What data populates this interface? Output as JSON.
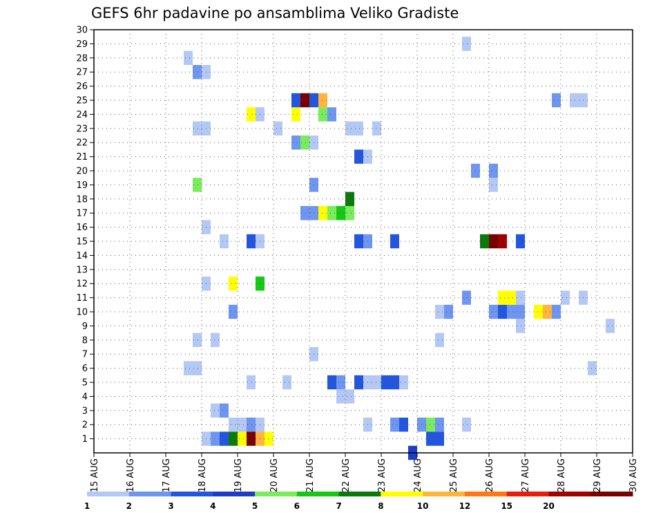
{
  "chart_data": {
    "type": "heatmap",
    "title": "GEFS 6hr padavine po ansamblima Veliko Gradiste",
    "xlabel": "",
    "ylabel": "",
    "x_ticks": [
      "15 AUG",
      "16 AUG",
      "17 AUG",
      "18 AUG",
      "19 AUG",
      "20 AUG",
      "21 AUG",
      "22 AUG",
      "23 AUG",
      "24 AUG",
      "25 AUG",
      "26 AUG",
      "27 AUG",
      "28 AUG",
      "29 AUG",
      "30 AUG"
    ],
    "y_ticks": [
      "1",
      "2",
      "3",
      "4",
      "5",
      "6",
      "7",
      "8",
      "9",
      "10",
      "11",
      "12",
      "13",
      "14",
      "15",
      "16",
      "17",
      "18",
      "19",
      "20",
      "21",
      "22",
      "23",
      "24",
      "25",
      "26",
      "27",
      "28",
      "29",
      "30"
    ],
    "x_unit": "days since 15 AUG",
    "xlim": [
      0,
      15
    ],
    "ylim": [
      0,
      30
    ],
    "grid": true,
    "colorbar": {
      "labels": [
        "1",
        "2",
        "3",
        "4",
        "5",
        "6",
        "7",
        "8",
        "10",
        "12",
        "15",
        "20"
      ],
      "colors": [
        "#b4c8f5",
        "#6e96f0",
        "#2356dc",
        "#1e3cc8",
        "#78ec5a",
        "#14c814",
        "#0a7a0a",
        "#ffff00",
        "#ffb43c",
        "#ff7814",
        "#e61e0a",
        "#a00000",
        "#780000"
      ]
    },
    "cells": [
      {
        "x": 8.75,
        "y": 0,
        "c": "#1e3cc8"
      },
      {
        "x": 3.0,
        "y": 1,
        "c": "#b4c8f5"
      },
      {
        "x": 3.25,
        "y": 1,
        "c": "#6e96f0"
      },
      {
        "x": 3.5,
        "y": 1,
        "c": "#2356dc"
      },
      {
        "x": 3.75,
        "y": 1,
        "c": "#0a7a0a"
      },
      {
        "x": 4.0,
        "y": 1,
        "c": "#ffff00"
      },
      {
        "x": 4.25,
        "y": 1,
        "c": "#780000"
      },
      {
        "x": 4.5,
        "y": 1,
        "c": "#ffb43c"
      },
      {
        "x": 4.75,
        "y": 1,
        "c": "#ffff00"
      },
      {
        "x": 9.25,
        "y": 1,
        "c": "#2356dc"
      },
      {
        "x": 9.5,
        "y": 1,
        "c": "#2356dc"
      },
      {
        "x": 3.75,
        "y": 2,
        "c": "#b4c8f5"
      },
      {
        "x": 4.0,
        "y": 2,
        "c": "#b4c8f5"
      },
      {
        "x": 4.25,
        "y": 2,
        "c": "#6e96f0"
      },
      {
        "x": 4.5,
        "y": 2,
        "c": "#b4c8f5"
      },
      {
        "x": 7.5,
        "y": 2,
        "c": "#b4c8f5"
      },
      {
        "x": 8.25,
        "y": 2,
        "c": "#6e96f0"
      },
      {
        "x": 8.5,
        "y": 2,
        "c": "#2356dc"
      },
      {
        "x": 9.0,
        "y": 2,
        "c": "#6e96f0"
      },
      {
        "x": 9.25,
        "y": 2,
        "c": "#78ec5a"
      },
      {
        "x": 9.5,
        "y": 2,
        "c": "#6e96f0"
      },
      {
        "x": 10.25,
        "y": 2,
        "c": "#b4c8f5"
      },
      {
        "x": 3.25,
        "y": 3,
        "c": "#b4c8f5"
      },
      {
        "x": 3.5,
        "y": 3,
        "c": "#6e96f0"
      },
      {
        "x": 6.75,
        "y": 4,
        "c": "#b4c8f5"
      },
      {
        "x": 7.0,
        "y": 4,
        "c": "#b4c8f5"
      },
      {
        "x": 4.25,
        "y": 5,
        "c": "#b4c8f5"
      },
      {
        "x": 5.25,
        "y": 5,
        "c": "#b4c8f5"
      },
      {
        "x": 6.5,
        "y": 5,
        "c": "#2356dc"
      },
      {
        "x": 6.75,
        "y": 5,
        "c": "#6e96f0"
      },
      {
        "x": 7.25,
        "y": 5,
        "c": "#2356dc"
      },
      {
        "x": 7.5,
        "y": 5,
        "c": "#b4c8f5"
      },
      {
        "x": 7.75,
        "y": 5,
        "c": "#b4c8f5"
      },
      {
        "x": 8.0,
        "y": 5,
        "c": "#2356dc"
      },
      {
        "x": 8.25,
        "y": 5,
        "c": "#2356dc"
      },
      {
        "x": 8.5,
        "y": 5,
        "c": "#b4c8f5"
      },
      {
        "x": 2.5,
        "y": 6,
        "c": "#b4c8f5"
      },
      {
        "x": 2.75,
        "y": 6,
        "c": "#b4c8f5"
      },
      {
        "x": 13.75,
        "y": 6,
        "c": "#b4c8f5"
      },
      {
        "x": 6.0,
        "y": 7,
        "c": "#b4c8f5"
      },
      {
        "x": 2.75,
        "y": 8,
        "c": "#b4c8f5"
      },
      {
        "x": 3.25,
        "y": 8,
        "c": "#b4c8f5"
      },
      {
        "x": 9.5,
        "y": 8,
        "c": "#b4c8f5"
      },
      {
        "x": 11.75,
        "y": 9,
        "c": "#b4c8f5"
      },
      {
        "x": 14.25,
        "y": 9,
        "c": "#b4c8f5"
      },
      {
        "x": 3.75,
        "y": 10,
        "c": "#6e96f0"
      },
      {
        "x": 9.5,
        "y": 10,
        "c": "#b4c8f5"
      },
      {
        "x": 9.75,
        "y": 10,
        "c": "#6e96f0"
      },
      {
        "x": 11.0,
        "y": 10,
        "c": "#6e96f0"
      },
      {
        "x": 11.25,
        "y": 10,
        "c": "#2356dc"
      },
      {
        "x": 11.5,
        "y": 10,
        "c": "#6e96f0"
      },
      {
        "x": 11.75,
        "y": 10,
        "c": "#6e96f0"
      },
      {
        "x": 12.25,
        "y": 10,
        "c": "#ffff00"
      },
      {
        "x": 12.5,
        "y": 10,
        "c": "#ffb43c"
      },
      {
        "x": 12.75,
        "y": 10,
        "c": "#6e96f0"
      },
      {
        "x": 10.25,
        "y": 11,
        "c": "#6e96f0"
      },
      {
        "x": 11.25,
        "y": 11,
        "c": "#ffff00"
      },
      {
        "x": 11.5,
        "y": 11,
        "c": "#ffff00"
      },
      {
        "x": 11.75,
        "y": 11,
        "c": "#b4c8f5"
      },
      {
        "x": 13.0,
        "y": 11,
        "c": "#b4c8f5"
      },
      {
        "x": 13.5,
        "y": 11,
        "c": "#b4c8f5"
      },
      {
        "x": 3.0,
        "y": 12,
        "c": "#b4c8f5"
      },
      {
        "x": 3.75,
        "y": 12,
        "c": "#ffff00"
      },
      {
        "x": 4.5,
        "y": 12,
        "c": "#14c814"
      },
      {
        "x": 3.5,
        "y": 15,
        "c": "#b4c8f5"
      },
      {
        "x": 4.25,
        "y": 15,
        "c": "#2356dc"
      },
      {
        "x": 4.5,
        "y": 15,
        "c": "#b4c8f5"
      },
      {
        "x": 7.25,
        "y": 15,
        "c": "#2356dc"
      },
      {
        "x": 7.5,
        "y": 15,
        "c": "#6e96f0"
      },
      {
        "x": 8.25,
        "y": 15,
        "c": "#2356dc"
      },
      {
        "x": 10.75,
        "y": 15,
        "c": "#0a7a0a"
      },
      {
        "x": 11.0,
        "y": 15,
        "c": "#780000"
      },
      {
        "x": 11.25,
        "y": 15,
        "c": "#a00000"
      },
      {
        "x": 11.75,
        "y": 15,
        "c": "#2356dc"
      },
      {
        "x": 3.0,
        "y": 16,
        "c": "#b4c8f5"
      },
      {
        "x": 5.75,
        "y": 17,
        "c": "#6e96f0"
      },
      {
        "x": 6.0,
        "y": 17,
        "c": "#6e96f0"
      },
      {
        "x": 6.25,
        "y": 17,
        "c": "#ffff00"
      },
      {
        "x": 6.5,
        "y": 17,
        "c": "#78ec5a"
      },
      {
        "x": 6.75,
        "y": 17,
        "c": "#14c814"
      },
      {
        "x": 7.0,
        "y": 17,
        "c": "#78ec5a"
      },
      {
        "x": 7.0,
        "y": 18,
        "c": "#0a7a0a"
      },
      {
        "x": 2.75,
        "y": 19,
        "c": "#78ec5a"
      },
      {
        "x": 6.0,
        "y": 19,
        "c": "#6e96f0"
      },
      {
        "x": 11.0,
        "y": 19,
        "c": "#b4c8f5"
      },
      {
        "x": 10.5,
        "y": 20,
        "c": "#6e96f0"
      },
      {
        "x": 11.0,
        "y": 20,
        "c": "#6e96f0"
      },
      {
        "x": 7.25,
        "y": 21,
        "c": "#2356dc"
      },
      {
        "x": 7.5,
        "y": 21,
        "c": "#b4c8f5"
      },
      {
        "x": 5.5,
        "y": 22,
        "c": "#6e96f0"
      },
      {
        "x": 5.75,
        "y": 22,
        "c": "#78ec5a"
      },
      {
        "x": 6.0,
        "y": 22,
        "c": "#b4c8f5"
      },
      {
        "x": 2.75,
        "y": 23,
        "c": "#b4c8f5"
      },
      {
        "x": 3.0,
        "y": 23,
        "c": "#b4c8f5"
      },
      {
        "x": 5.0,
        "y": 23,
        "c": "#b4c8f5"
      },
      {
        "x": 7.0,
        "y": 23,
        "c": "#b4c8f5"
      },
      {
        "x": 7.25,
        "y": 23,
        "c": "#b4c8f5"
      },
      {
        "x": 7.75,
        "y": 23,
        "c": "#b4c8f5"
      },
      {
        "x": 4.25,
        "y": 24,
        "c": "#ffff00"
      },
      {
        "x": 4.5,
        "y": 24,
        "c": "#b4c8f5"
      },
      {
        "x": 5.5,
        "y": 24,
        "c": "#ffff00"
      },
      {
        "x": 6.25,
        "y": 24,
        "c": "#78ec5a"
      },
      {
        "x": 6.5,
        "y": 24,
        "c": "#6e96f0"
      },
      {
        "x": 5.5,
        "y": 25,
        "c": "#2356dc"
      },
      {
        "x": 5.75,
        "y": 25,
        "c": "#780000"
      },
      {
        "x": 6.0,
        "y": 25,
        "c": "#2356dc"
      },
      {
        "x": 6.25,
        "y": 25,
        "c": "#ffb43c"
      },
      {
        "x": 12.75,
        "y": 25,
        "c": "#6e96f0"
      },
      {
        "x": 13.25,
        "y": 25,
        "c": "#b4c8f5"
      },
      {
        "x": 13.5,
        "y": 25,
        "c": "#b4c8f5"
      },
      {
        "x": 2.75,
        "y": 27,
        "c": "#6e96f0"
      },
      {
        "x": 3.0,
        "y": 27,
        "c": "#b4c8f5"
      },
      {
        "x": 2.5,
        "y": 28,
        "c": "#b4c8f5"
      },
      {
        "x": 10.25,
        "y": 29,
        "c": "#b4c8f5"
      }
    ]
  }
}
